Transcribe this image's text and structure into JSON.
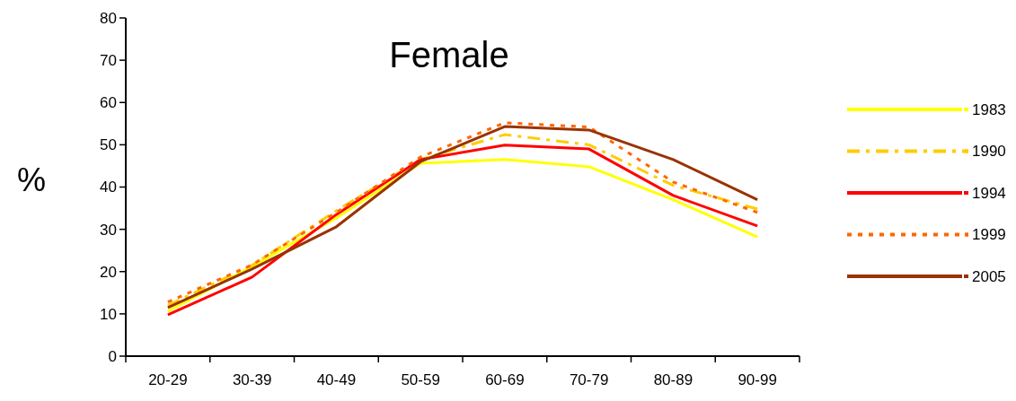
{
  "chart_data": {
    "type": "line",
    "title": "Female",
    "ylabel": "%",
    "categories": [
      "20-29",
      "30-39",
      "40-49",
      "50-59",
      "60-69",
      "70-79",
      "80-89",
      "90-99"
    ],
    "ylim": [
      0,
      80
    ],
    "yticks": [
      0,
      10,
      20,
      30,
      40,
      50,
      60,
      70,
      80
    ],
    "grid": false,
    "legend": "right",
    "marker": "none",
    "series": [
      {
        "name": "1983",
        "color": "#ffff00",
        "line_style": "solid",
        "values": [
          10.6,
          21.2,
          32.7,
          45.6,
          46.5,
          44.8,
          37,
          28.2
        ]
      },
      {
        "name": "1990",
        "color": "#ffcc00",
        "line_style": "dashed",
        "values": [
          12,
          21.5,
          34.4,
          46.5,
          52.4,
          50,
          40.4,
          34.8
        ]
      },
      {
        "name": "1994",
        "color": "#ff0000",
        "line_style": "solid",
        "values": [
          9.8,
          18.7,
          33.5,
          46.5,
          49.9,
          49,
          38,
          30.8
        ]
      },
      {
        "name": "1999",
        "color": "#ff6600",
        "line_style": "dotted",
        "values": [
          12.8,
          21.6,
          34,
          47.1,
          55.2,
          54.2,
          41.2,
          34
        ]
      },
      {
        "name": "2005",
        "color": "#993300",
        "line_style": "solid",
        "values": [
          11.5,
          20.6,
          30.6,
          46,
          54.3,
          53.5,
          46.5,
          37
        ]
      }
    ]
  }
}
